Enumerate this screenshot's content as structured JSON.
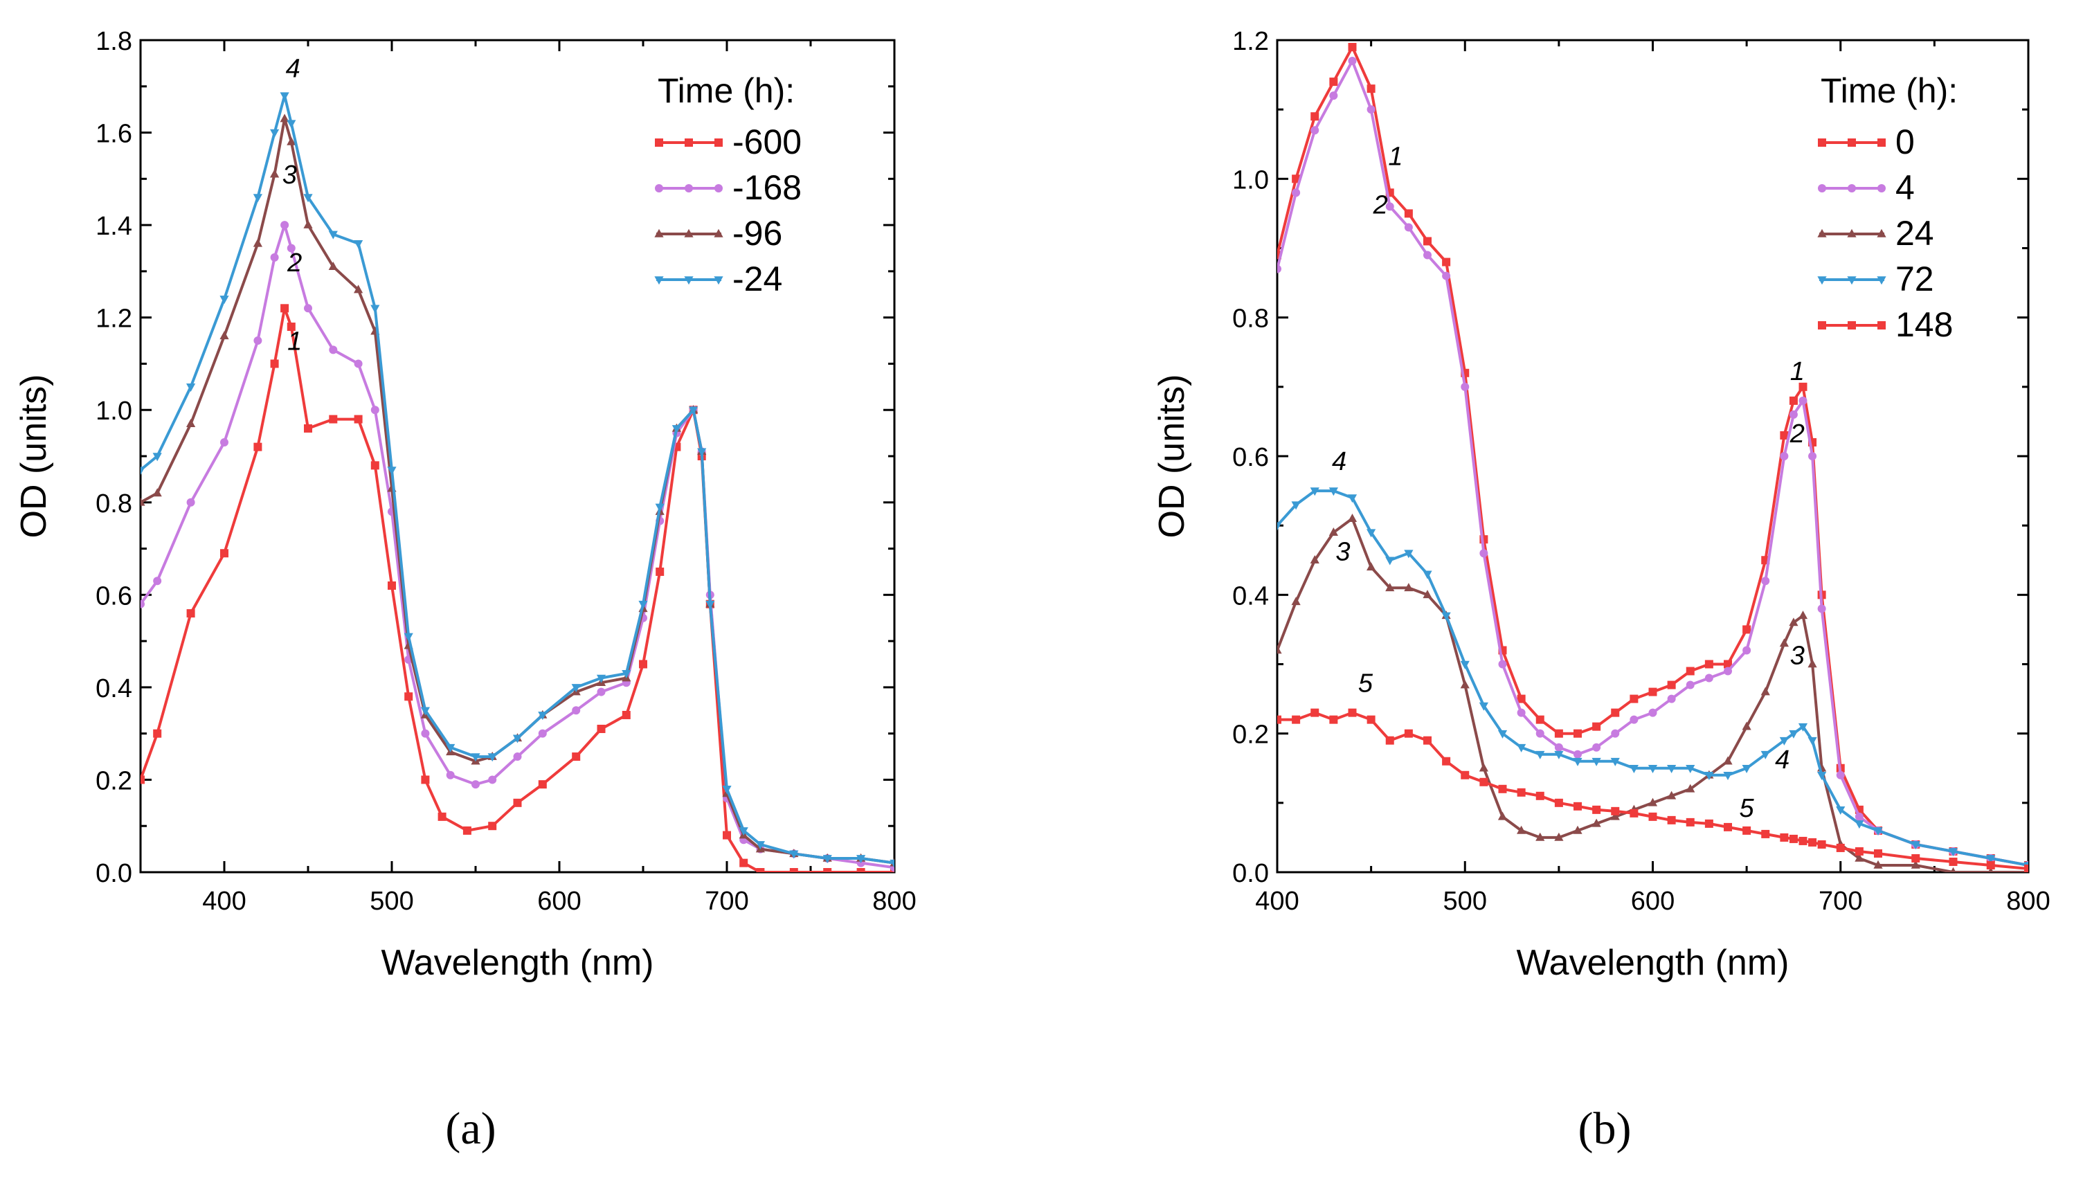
{
  "chart_data": [
    {
      "type": "line",
      "panel": "a",
      "caption": "(a)",
      "xlabel": "Wavelength (nm)",
      "ylabel": "OD (units)",
      "xlim": [
        350,
        800
      ],
      "ylim": [
        0,
        1.8
      ],
      "xticks": [
        400,
        500,
        600,
        700,
        800
      ],
      "yticks": [
        0.0,
        0.2,
        0.4,
        0.6,
        0.8,
        1.0,
        1.2,
        1.4,
        1.6,
        1.8
      ],
      "legend_title": "Time (h):",
      "legend_position": "top-right",
      "series": [
        {
          "name": "-600",
          "color": "#ef3b3b",
          "marker": "square",
          "x": [
            350,
            360,
            380,
            400,
            420,
            430,
            436,
            440,
            450,
            465,
            480,
            490,
            500,
            510,
            520,
            530,
            545,
            560,
            575,
            590,
            610,
            625,
            640,
            650,
            660,
            670,
            680,
            685,
            690,
            700,
            710,
            720,
            740,
            760,
            780,
            800
          ],
          "y": [
            0.2,
            0.3,
            0.56,
            0.69,
            0.92,
            1.1,
            1.22,
            1.18,
            0.96,
            0.98,
            0.98,
            0.88,
            0.62,
            0.38,
            0.2,
            0.12,
            0.09,
            0.1,
            0.15,
            0.19,
            0.25,
            0.31,
            0.34,
            0.45,
            0.65,
            0.92,
            1.0,
            0.9,
            0.58,
            0.08,
            0.02,
            0.0,
            0.0,
            0.0,
            0.0,
            0.0
          ]
        },
        {
          "name": "-168",
          "color": "#c77be0",
          "marker": "circle",
          "x": [
            350,
            360,
            380,
            400,
            420,
            430,
            436,
            440,
            450,
            465,
            480,
            490,
            500,
            510,
            520,
            535,
            550,
            560,
            575,
            590,
            610,
            625,
            640,
            650,
            660,
            670,
            680,
            685,
            690,
            700,
            710,
            720,
            740,
            760,
            780,
            800
          ],
          "y": [
            0.58,
            0.63,
            0.8,
            0.93,
            1.15,
            1.33,
            1.4,
            1.35,
            1.22,
            1.13,
            1.1,
            1.0,
            0.78,
            0.46,
            0.3,
            0.21,
            0.19,
            0.2,
            0.25,
            0.3,
            0.35,
            0.39,
            0.41,
            0.55,
            0.76,
            0.95,
            1.0,
            0.91,
            0.6,
            0.16,
            0.07,
            0.05,
            0.04,
            0.03,
            0.02,
            0.01
          ]
        },
        {
          "name": "-96",
          "color": "#8b4a4a",
          "marker": "triangle-up",
          "x": [
            350,
            360,
            380,
            400,
            420,
            430,
            436,
            440,
            450,
            465,
            480,
            490,
            500,
            510,
            520,
            535,
            550,
            560,
            575,
            590,
            610,
            625,
            640,
            650,
            660,
            670,
            680,
            685,
            690,
            700,
            710,
            720,
            740,
            760,
            780,
            800
          ],
          "y": [
            0.8,
            0.82,
            0.97,
            1.16,
            1.36,
            1.51,
            1.63,
            1.58,
            1.4,
            1.31,
            1.26,
            1.17,
            0.83,
            0.49,
            0.34,
            0.26,
            0.24,
            0.25,
            0.29,
            0.34,
            0.39,
            0.41,
            0.42,
            0.57,
            0.78,
            0.96,
            1.0,
            0.91,
            0.58,
            0.17,
            0.08,
            0.05,
            0.04,
            0.03,
            0.03,
            0.02
          ]
        },
        {
          "name": "-24",
          "color": "#3a9ad4",
          "marker": "triangle-down",
          "x": [
            350,
            360,
            380,
            400,
            420,
            430,
            436,
            440,
            450,
            465,
            480,
            490,
            500,
            510,
            520,
            535,
            550,
            560,
            575,
            590,
            610,
            625,
            640,
            650,
            660,
            670,
            680,
            685,
            690,
            700,
            710,
            720,
            740,
            760,
            780,
            800
          ],
          "y": [
            0.87,
            0.9,
            1.05,
            1.24,
            1.46,
            1.6,
            1.68,
            1.62,
            1.46,
            1.38,
            1.36,
            1.22,
            0.87,
            0.51,
            0.35,
            0.27,
            0.25,
            0.25,
            0.29,
            0.34,
            0.4,
            0.42,
            0.43,
            0.58,
            0.79,
            0.96,
            1.0,
            0.91,
            0.58,
            0.18,
            0.09,
            0.06,
            0.04,
            0.03,
            0.03,
            0.02
          ]
        }
      ],
      "annotations": [
        {
          "text": "1",
          "x": 442,
          "y": 1.13
        },
        {
          "text": "2",
          "x": 442,
          "y": 1.3
        },
        {
          "text": "3",
          "x": 439,
          "y": 1.49
        },
        {
          "text": "4",
          "x": 441,
          "y": 1.72
        }
      ]
    },
    {
      "type": "line",
      "panel": "b",
      "caption": "(b)",
      "xlabel": "Wavelength (nm)",
      "ylabel": "OD (units)",
      "xlim": [
        400,
        800
      ],
      "ylim": [
        0,
        1.2
      ],
      "xticks": [
        400,
        500,
        600,
        700,
        800
      ],
      "yticks": [
        0.0,
        0.2,
        0.4,
        0.6,
        0.8,
        1.0,
        1.2
      ],
      "legend_title": "Time (h):",
      "legend_position": "top-right",
      "series": [
        {
          "name": "0",
          "color": "#ef3b3b",
          "marker": "square",
          "x": [
            400,
            410,
            420,
            430,
            440,
            450,
            460,
            470,
            480,
            490,
            500,
            510,
            520,
            530,
            540,
            550,
            560,
            570,
            580,
            590,
            600,
            610,
            620,
            630,
            640,
            650,
            660,
            670,
            675,
            680,
            685,
            690,
            700,
            710,
            720,
            740,
            760,
            780,
            800
          ],
          "y": [
            0.89,
            1.0,
            1.09,
            1.14,
            1.19,
            1.13,
            0.98,
            0.95,
            0.91,
            0.88,
            0.72,
            0.48,
            0.32,
            0.25,
            0.22,
            0.2,
            0.2,
            0.21,
            0.23,
            0.25,
            0.26,
            0.27,
            0.29,
            0.3,
            0.3,
            0.35,
            0.45,
            0.63,
            0.68,
            0.7,
            0.62,
            0.4,
            0.15,
            0.09,
            0.06,
            0.04,
            0.03,
            0.02,
            0.01
          ]
        },
        {
          "name": "4",
          "color": "#c77be0",
          "marker": "circle",
          "x": [
            400,
            410,
            420,
            430,
            440,
            450,
            460,
            470,
            480,
            490,
            500,
            510,
            520,
            530,
            540,
            550,
            560,
            570,
            580,
            590,
            600,
            610,
            620,
            630,
            640,
            650,
            660,
            670,
            675,
            680,
            685,
            690,
            700,
            710,
            720,
            740,
            760,
            780,
            800
          ],
          "y": [
            0.87,
            0.98,
            1.07,
            1.12,
            1.17,
            1.1,
            0.96,
            0.93,
            0.89,
            0.86,
            0.7,
            0.46,
            0.3,
            0.23,
            0.2,
            0.18,
            0.17,
            0.18,
            0.2,
            0.22,
            0.23,
            0.25,
            0.27,
            0.28,
            0.29,
            0.32,
            0.42,
            0.6,
            0.66,
            0.68,
            0.6,
            0.38,
            0.14,
            0.08,
            0.06,
            0.04,
            0.03,
            0.02,
            0.01
          ]
        },
        {
          "name": "24",
          "color": "#8b4a4a",
          "marker": "triangle-up",
          "x": [
            400,
            410,
            420,
            430,
            440,
            450,
            460,
            470,
            480,
            490,
            500,
            510,
            520,
            530,
            540,
            550,
            560,
            570,
            580,
            590,
            600,
            610,
            620,
            630,
            640,
            650,
            660,
            670,
            675,
            680,
            685,
            690,
            700,
            710,
            720,
            740,
            760,
            780,
            800
          ],
          "y": [
            0.32,
            0.39,
            0.45,
            0.49,
            0.51,
            0.44,
            0.41,
            0.41,
            0.4,
            0.37,
            0.27,
            0.15,
            0.08,
            0.06,
            0.05,
            0.05,
            0.06,
            0.07,
            0.08,
            0.09,
            0.1,
            0.11,
            0.12,
            0.14,
            0.16,
            0.21,
            0.26,
            0.33,
            0.36,
            0.37,
            0.3,
            0.15,
            0.04,
            0.02,
            0.01,
            0.01,
            0.0,
            0.0,
            0.0
          ]
        },
        {
          "name": "72",
          "color": "#3a9ad4",
          "marker": "triangle-down",
          "x": [
            400,
            410,
            420,
            430,
            440,
            450,
            460,
            470,
            480,
            490,
            500,
            510,
            520,
            530,
            540,
            550,
            560,
            570,
            580,
            590,
            600,
            610,
            620,
            630,
            640,
            650,
            660,
            670,
            675,
            680,
            685,
            690,
            700,
            710,
            720,
            740,
            760,
            780,
            800
          ],
          "y": [
            0.5,
            0.53,
            0.55,
            0.55,
            0.54,
            0.49,
            0.45,
            0.46,
            0.43,
            0.37,
            0.3,
            0.24,
            0.2,
            0.18,
            0.17,
            0.17,
            0.16,
            0.16,
            0.16,
            0.15,
            0.15,
            0.15,
            0.15,
            0.14,
            0.14,
            0.15,
            0.17,
            0.19,
            0.2,
            0.21,
            0.19,
            0.14,
            0.09,
            0.07,
            0.06,
            0.04,
            0.03,
            0.02,
            0.01
          ]
        },
        {
          "name": "148",
          "color": "#ef3b3b",
          "marker": "square",
          "x": [
            400,
            410,
            420,
            430,
            440,
            450,
            460,
            470,
            480,
            490,
            500,
            510,
            520,
            530,
            540,
            550,
            560,
            570,
            580,
            590,
            600,
            610,
            620,
            630,
            640,
            650,
            660,
            670,
            675,
            680,
            685,
            690,
            700,
            710,
            720,
            740,
            760,
            780,
            800
          ],
          "y": [
            0.22,
            0.22,
            0.23,
            0.22,
            0.23,
            0.22,
            0.19,
            0.2,
            0.19,
            0.16,
            0.14,
            0.13,
            0.12,
            0.115,
            0.11,
            0.1,
            0.095,
            0.09,
            0.088,
            0.085,
            0.08,
            0.075,
            0.072,
            0.07,
            0.065,
            0.06,
            0.055,
            0.05,
            0.048,
            0.045,
            0.043,
            0.04,
            0.035,
            0.03,
            0.027,
            0.02,
            0.015,
            0.01,
            0.005
          ]
        }
      ],
      "annotations": [
        {
          "text": "1",
          "x": 463,
          "y": 1.02
        },
        {
          "text": "2",
          "x": 455,
          "y": 0.95
        },
        {
          "text": "1",
          "x": 677,
          "y": 0.71
        },
        {
          "text": "2",
          "x": 677,
          "y": 0.62
        },
        {
          "text": "4",
          "x": 433,
          "y": 0.58
        },
        {
          "text": "3",
          "x": 435,
          "y": 0.45
        },
        {
          "text": "5",
          "x": 447,
          "y": 0.26
        },
        {
          "text": "3",
          "x": 677,
          "y": 0.3
        },
        {
          "text": "4",
          "x": 669,
          "y": 0.15
        },
        {
          "text": "5",
          "x": 650,
          "y": 0.08
        }
      ]
    }
  ]
}
